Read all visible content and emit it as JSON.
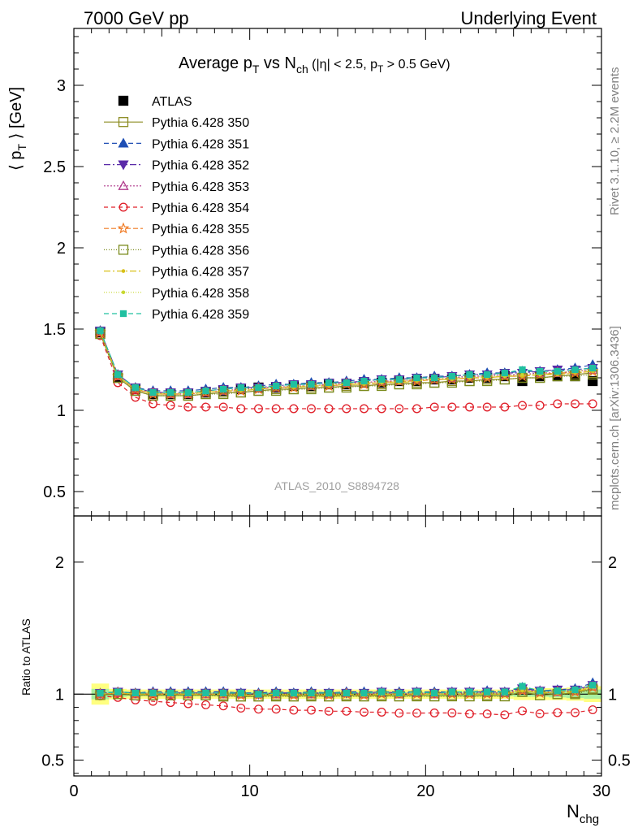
{
  "header": {
    "left": "7000 GeV pp",
    "right": "Underlying Event"
  },
  "side_labels": {
    "rivet": "Rivet 3.1.10, ≥ 2.2M events",
    "mcplots": "mcplots.cern.ch [arXiv:1306.3436]"
  },
  "analysis_id": "ATLAS_2010_S8894728",
  "chart_data": [
    {
      "type": "line",
      "panel": "main",
      "title": "Average p_T vs N_ch (|η| < 2.5, p_T > 0.5 GeV)",
      "xlabel": "N_chg",
      "ylabel": "⟨ p_T ⟩ [GeV]",
      "xlim": [
        0,
        30
      ],
      "ylim": [
        0.35,
        3.35
      ],
      "y_ticks": [
        0.5,
        1,
        1.5,
        2,
        2.5,
        3
      ],
      "legend_position": "top-left",
      "x": [
        1.5,
        2.5,
        3.5,
        4.5,
        5.5,
        6.5,
        7.5,
        8.5,
        9.5,
        10.5,
        11.5,
        12.5,
        13.5,
        14.5,
        15.5,
        16.5,
        17.5,
        18.5,
        19.5,
        20.5,
        21.5,
        22.5,
        23.5,
        24.5,
        25.5,
        26.5,
        27.5,
        28.5,
        29.5
      ],
      "series": [
        {
          "name": "ATLAS",
          "color": "#000000",
          "marker": "filled-square",
          "dash": "none",
          "values": [
            1.48,
            1.2,
            1.13,
            1.1,
            1.1,
            1.1,
            1.11,
            1.12,
            1.13,
            1.14,
            1.14,
            1.15,
            1.15,
            1.16,
            1.16,
            1.17,
            1.17,
            1.18,
            1.18,
            1.19,
            1.19,
            1.2,
            1.2,
            1.21,
            1.18,
            1.21,
            1.21,
            1.21,
            1.18
          ]
        },
        {
          "name": "Pythia 6.428 350",
          "color": "#8b8b1f",
          "marker": "open-square",
          "dash": "solid",
          "values": [
            1.47,
            1.2,
            1.12,
            1.09,
            1.09,
            1.09,
            1.1,
            1.11,
            1.11,
            1.12,
            1.13,
            1.13,
            1.14,
            1.14,
            1.15,
            1.15,
            1.16,
            1.16,
            1.17,
            1.17,
            1.18,
            1.18,
            1.19,
            1.19,
            1.2,
            1.2,
            1.21,
            1.22,
            1.23
          ]
        },
        {
          "name": "Pythia 6.428 351",
          "color": "#1f4fb4",
          "marker": "filled-triangle-up",
          "dash": "6,4",
          "values": [
            1.49,
            1.22,
            1.14,
            1.12,
            1.12,
            1.12,
            1.13,
            1.14,
            1.14,
            1.15,
            1.16,
            1.16,
            1.17,
            1.17,
            1.18,
            1.19,
            1.19,
            1.2,
            1.2,
            1.21,
            1.21,
            1.22,
            1.23,
            1.23,
            1.24,
            1.24,
            1.25,
            1.26,
            1.28
          ]
        },
        {
          "name": "Pythia 6.428 352",
          "color": "#5a2aa8",
          "marker": "filled-triangle-down",
          "dash": "8,3,2,3",
          "values": [
            1.49,
            1.22,
            1.14,
            1.11,
            1.11,
            1.11,
            1.12,
            1.13,
            1.14,
            1.14,
            1.15,
            1.16,
            1.16,
            1.17,
            1.17,
            1.18,
            1.19,
            1.19,
            1.2,
            1.2,
            1.21,
            1.22,
            1.22,
            1.23,
            1.23,
            1.24,
            1.25,
            1.25,
            1.26
          ]
        },
        {
          "name": "Pythia 6.428 353",
          "color": "#b03a8c",
          "marker": "open-triangle-up",
          "dash": "2,2",
          "values": [
            1.48,
            1.21,
            1.13,
            1.11,
            1.1,
            1.1,
            1.11,
            1.12,
            1.13,
            1.14,
            1.14,
            1.15,
            1.15,
            1.16,
            1.17,
            1.17,
            1.18,
            1.18,
            1.19,
            1.19,
            1.2,
            1.21,
            1.21,
            1.22,
            1.22,
            1.23,
            1.23,
            1.24,
            1.25
          ]
        },
        {
          "name": "Pythia 6.428 354",
          "color": "#e0202a",
          "marker": "open-circle",
          "dash": "5,4",
          "values": [
            1.46,
            1.17,
            1.08,
            1.04,
            1.03,
            1.02,
            1.02,
            1.02,
            1.01,
            1.01,
            1.01,
            1.01,
            1.01,
            1.01,
            1.01,
            1.01,
            1.01,
            1.01,
            1.01,
            1.02,
            1.02,
            1.02,
            1.02,
            1.02,
            1.03,
            1.03,
            1.04,
            1.04,
            1.04
          ]
        },
        {
          "name": "Pythia 6.428 355",
          "color": "#f07820",
          "marker": "open-star",
          "dash": "6,3",
          "values": [
            1.48,
            1.21,
            1.13,
            1.1,
            1.1,
            1.1,
            1.11,
            1.12,
            1.12,
            1.13,
            1.14,
            1.14,
            1.15,
            1.15,
            1.16,
            1.16,
            1.17,
            1.18,
            1.18,
            1.19,
            1.19,
            1.2,
            1.2,
            1.21,
            1.21,
            1.22,
            1.23,
            1.23,
            1.24
          ]
        },
        {
          "name": "Pythia 6.428 356",
          "color": "#7a8a1c",
          "marker": "open-square",
          "dash": "1,2",
          "values": [
            1.47,
            1.2,
            1.12,
            1.09,
            1.09,
            1.09,
            1.1,
            1.1,
            1.11,
            1.12,
            1.12,
            1.13,
            1.13,
            1.14,
            1.14,
            1.15,
            1.15,
            1.16,
            1.16,
            1.17,
            1.17,
            1.18,
            1.18,
            1.19,
            1.2,
            1.2,
            1.21,
            1.21,
            1.22
          ]
        },
        {
          "name": "Pythia 6.428 357",
          "color": "#d8c018",
          "marker": "small-dot",
          "dash": "8,3,2,3",
          "values": [
            1.48,
            1.21,
            1.13,
            1.1,
            1.1,
            1.1,
            1.11,
            1.12,
            1.12,
            1.13,
            1.14,
            1.14,
            1.15,
            1.15,
            1.16,
            1.16,
            1.17,
            1.17,
            1.18,
            1.19,
            1.19,
            1.2,
            1.2,
            1.21,
            1.21,
            1.22,
            1.22,
            1.23,
            1.24
          ]
        },
        {
          "name": "Pythia 6.428 358",
          "color": "#c8d830",
          "marker": "small-dot",
          "dash": "1,2",
          "values": [
            1.48,
            1.21,
            1.13,
            1.11,
            1.1,
            1.11,
            1.11,
            1.12,
            1.13,
            1.13,
            1.14,
            1.15,
            1.15,
            1.16,
            1.16,
            1.17,
            1.17,
            1.18,
            1.19,
            1.19,
            1.2,
            1.2,
            1.21,
            1.21,
            1.22,
            1.22,
            1.23,
            1.24,
            1.25
          ]
        },
        {
          "name": "Pythia 6.428 359",
          "color": "#20c0a0",
          "marker": "filled-square-small",
          "dash": "6,4",
          "values": [
            1.49,
            1.22,
            1.14,
            1.11,
            1.11,
            1.11,
            1.12,
            1.13,
            1.14,
            1.14,
            1.15,
            1.16,
            1.16,
            1.17,
            1.17,
            1.18,
            1.19,
            1.19,
            1.2,
            1.2,
            1.21,
            1.22,
            1.22,
            1.23,
            1.25,
            1.24,
            1.24,
            1.25,
            1.26
          ]
        }
      ]
    },
    {
      "type": "line",
      "panel": "ratio",
      "ylabel": "Ratio to ATLAS",
      "xlabel": "N_chg",
      "xlim": [
        0,
        30
      ],
      "x_ticks": [
        0,
        10,
        20,
        30
      ],
      "ylim": [
        0.38,
        2.35
      ],
      "y_ticks": [
        0.5,
        1,
        2
      ],
      "reference": 1,
      "band_description": "ATLAS uncertainty band (yellow: total, green: statistical)",
      "band_x": [
        1.5,
        2.5,
        3.5,
        4.5,
        5.5,
        6.5,
        7.5,
        8.5,
        9.5,
        10.5,
        11.5,
        12.5,
        13.5,
        14.5,
        15.5,
        16.5,
        17.5,
        18.5,
        19.5,
        20.5,
        21.5,
        22.5,
        23.5,
        24.5,
        25.5,
        26.5,
        27.5,
        28.5,
        29.5
      ],
      "band_total_halfwidth": [
        0.08,
        0.04,
        0.035,
        0.035,
        0.035,
        0.035,
        0.035,
        0.035,
        0.035,
        0.035,
        0.035,
        0.035,
        0.035,
        0.035,
        0.035,
        0.035,
        0.035,
        0.035,
        0.035,
        0.035,
        0.035,
        0.035,
        0.035,
        0.035,
        0.045,
        0.045,
        0.045,
        0.05,
        0.06
      ],
      "band_stat_halfwidth": [
        0.04,
        0.02,
        0.015,
        0.015,
        0.015,
        0.015,
        0.015,
        0.015,
        0.015,
        0.015,
        0.015,
        0.015,
        0.015,
        0.015,
        0.015,
        0.015,
        0.015,
        0.015,
        0.015,
        0.015,
        0.015,
        0.015,
        0.015,
        0.015,
        0.02,
        0.02,
        0.025,
        0.03,
        0.035
      ]
    }
  ]
}
